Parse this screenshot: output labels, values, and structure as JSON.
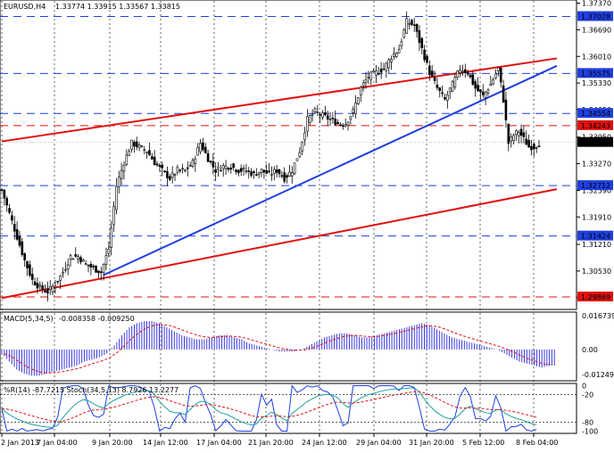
{
  "chart_data": {
    "type": "candlestick",
    "main": {
      "symbol": "EURUSD,H4",
      "ohlc": "1.33774 1.33915 1.33567 1.33815",
      "ylim": [
        1.2955,
        1.3745
      ],
      "price_ticks": [
        "1.37370",
        "1.36690",
        "1.36010",
        "1.35330",
        "1.34650",
        "1.33950",
        "1.33270",
        "1.32590",
        "1.31910",
        "1.31210",
        "1.30530",
        "1.29850"
      ],
      "levels": [
        {
          "value": 1.37028,
          "label": "1.37028",
          "color": "#1f3fe0"
        },
        {
          "value": 1.35575,
          "label": "1.35575",
          "color": "#1f3fe0"
        },
        {
          "value": 1.34554,
          "label": "1.34554",
          "color": "#1f3fe0"
        },
        {
          "value": 1.34243,
          "label": "1.34243",
          "color": "#e01010"
        },
        {
          "value": 1.33815,
          "label": "1.33815",
          "color": "#000000"
        },
        {
          "value": 1.32712,
          "label": "1.32712",
          "color": "#1f3fe0"
        },
        {
          "value": 1.31424,
          "label": "1.31424",
          "color": "#1f3fe0"
        },
        {
          "value": 1.29869,
          "label": "1.29869",
          "color": "#e01010"
        }
      ],
      "trendlines": [
        {
          "color": "#e01010",
          "from": [
            0,
            1.3384
          ],
          "to": [
            218,
            1.3596
          ]
        },
        {
          "color": "#e01010",
          "from": [
            0,
            1.2984
          ],
          "to": [
            218,
            1.3262
          ]
        },
        {
          "color": "#1f3fe0",
          "from": [
            40,
            1.3043
          ],
          "to": [
            218,
            1.3577
          ]
        }
      ],
      "close_path": [
        [
          0,
          1.326
        ],
        [
          3,
          1.32
        ],
        [
          6,
          1.314
        ],
        [
          9,
          1.308
        ],
        [
          12,
          1.303
        ],
        [
          15,
          1.301
        ],
        [
          18,
          1.3
        ],
        [
          21,
          1.302
        ],
        [
          24,
          1.305
        ],
        [
          27,
          1.309
        ],
        [
          30,
          1.309
        ],
        [
          33,
          1.307
        ],
        [
          36,
          1.306
        ],
        [
          39,
          1.305
        ],
        [
          42,
          1.311
        ],
        [
          45,
          1.327
        ],
        [
          48,
          1.333
        ],
        [
          51,
          1.338
        ],
        [
          54,
          1.337
        ],
        [
          57,
          1.336
        ],
        [
          60,
          1.333
        ],
        [
          63,
          1.331
        ],
        [
          66,
          1.329
        ],
        [
          69,
          1.331
        ],
        [
          72,
          1.331
        ],
        [
          75,
          1.333
        ],
        [
          78,
          1.338
        ],
        [
          81,
          1.334
        ],
        [
          84,
          1.331
        ],
        [
          87,
          1.332
        ],
        [
          90,
          1.332
        ],
        [
          93,
          1.331
        ],
        [
          96,
          1.331
        ],
        [
          99,
          1.33
        ],
        [
          102,
          1.331
        ],
        [
          105,
          1.33
        ],
        [
          108,
          1.331
        ],
        [
          111,
          1.329
        ],
        [
          114,
          1.331
        ],
        [
          117,
          1.336
        ],
        [
          120,
          1.344
        ],
        [
          123,
          1.346
        ],
        [
          126,
          1.345
        ],
        [
          129,
          1.344
        ],
        [
          132,
          1.343
        ],
        [
          135,
          1.343
        ],
        [
          138,
          1.346
        ],
        [
          141,
          1.352
        ],
        [
          144,
          1.355
        ],
        [
          147,
          1.356
        ],
        [
          150,
          1.357
        ],
        [
          153,
          1.36
        ],
        [
          156,
          1.362
        ],
        [
          159,
          1.369
        ],
        [
          162,
          1.368
        ],
        [
          165,
          1.362
        ],
        [
          168,
          1.356
        ],
        [
          171,
          1.352
        ],
        [
          174,
          1.349
        ],
        [
          177,
          1.353
        ],
        [
          180,
          1.357
        ],
        [
          183,
          1.356
        ],
        [
          186,
          1.352
        ],
        [
          189,
          1.35
        ],
        [
          192,
          1.353
        ],
        [
          195,
          1.357
        ],
        [
          197,
          1.349
        ],
        [
          199,
          1.338
        ],
        [
          201,
          1.34
        ],
        [
          203,
          1.341
        ],
        [
          205,
          1.339
        ],
        [
          207,
          1.337
        ],
        [
          209,
          1.337
        ],
        [
          211,
          1.338
        ]
      ]
    },
    "macd": {
      "label": "MACD(5,34,5)",
      "values_text": "-0.008358 -0.009250",
      "ticks": [
        "0.016739",
        "0.00",
        "-0.01249"
      ],
      "ylim": [
        -0.0155,
        0.0185
      ],
      "hist": [
        -0.002,
        -0.006,
        -0.01,
        -0.012,
        -0.013,
        -0.013,
        -0.012,
        -0.011,
        -0.01,
        -0.009,
        -0.008,
        -0.006,
        -0.005,
        -0.004,
        -0.002,
        0.002,
        0.007,
        0.011,
        0.013,
        0.014,
        0.014,
        0.013,
        0.011,
        0.009,
        0.007,
        0.006,
        0.005,
        0.005,
        0.006,
        0.007,
        0.007,
        0.006,
        0.005,
        0.003,
        0.002,
        0.001,
        0.0,
        -0.001,
        -0.001,
        -0.001,
        0.0,
        0.002,
        0.004,
        0.006,
        0.007,
        0.008,
        0.008,
        0.007,
        0.006,
        0.006,
        0.007,
        0.008,
        0.009,
        0.01,
        0.011,
        0.012,
        0.013,
        0.012,
        0.01,
        0.008,
        0.006,
        0.005,
        0.004,
        0.003,
        0.002,
        0.001,
        0.0,
        -0.002,
        -0.004,
        -0.006,
        -0.007,
        -0.008,
        -0.009,
        -0.008
      ]
    },
    "stoch": {
      "label": "%R(14) -87.7215 Stoch(34,5,13) 8.7926 13.2277",
      "ticks": [
        "0",
        "-20",
        "-80",
        "-100"
      ],
      "ylim": [
        -105,
        5
      ]
    },
    "x_ticks": [
      "2 Jan 2013",
      "7 Jan 04:00",
      "9 Jan 20:00",
      "14 Jan 12:00",
      "17 Jan 04:00",
      "21 Jan 20:00",
      "24 Jan 12:00",
      "29 Jan 04:00",
      "31 Jan 20:00",
      "5 Feb 12:00",
      "8 Feb 04:00"
    ],
    "colors": {
      "bull": "#2e8b2e",
      "bear": "#000000",
      "macd_bar": "#3838e0",
      "signal": "#e01010",
      "wpr": "#1f3fe0",
      "stoch_main": "#20a0a0",
      "stoch_signal": "#e01010"
    }
  }
}
